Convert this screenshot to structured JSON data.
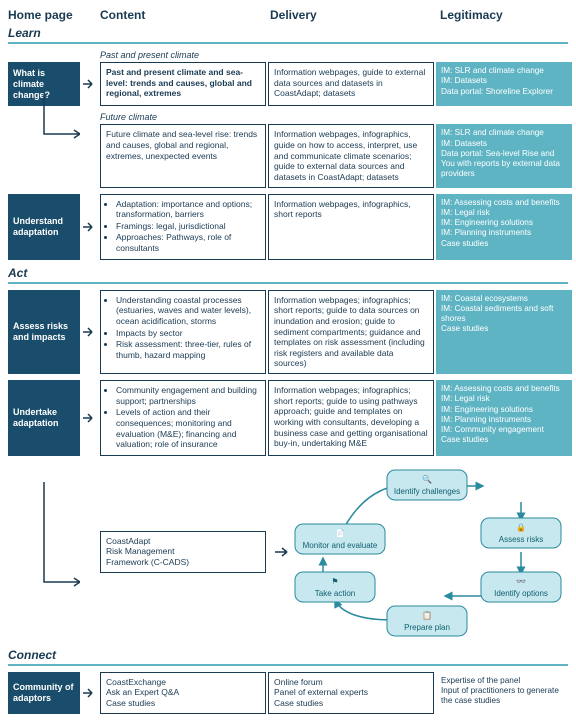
{
  "colors": {
    "dark": "#1a4d6b",
    "teal": "#5fb4c4",
    "tealLight": "#c7e8ee",
    "text": "#1a3a52"
  },
  "headers": {
    "c1": "Home page",
    "c2": "Content",
    "c3": "Delivery",
    "c4": "Legitimacy"
  },
  "learn": {
    "title": "Learn",
    "sub1": "Past and present climate",
    "sub2": "Future climate",
    "home1": "What is climate change?",
    "home2": "Understand adaptation",
    "r1c": "Past and present climate and sea-level: trends and causes, global and regional, extremes",
    "r1d": "Information webpages, guide to external data sources and datasets in CoastAdapt; datasets",
    "r1l": "IM: SLR and climate change\nIM: Datasets\nData portal: Shoreline Explorer",
    "r2c": "Future climate and sea-level rise: trends and causes, global and regional, extremes, unexpected events",
    "r2d": "Information webpages, infographics, guide on how to access, interpret, use and communicate climate scenarios; guide to external data sources and datasets in CoastAdapt; datasets",
    "r2l": "IM: SLR and climate change\nIM: Datasets\nData portal: Sea-level Rise and You with reports by external data providers",
    "r3c_b1": "Adaptation: importance and options; transformation, barriers",
    "r3c_b2": "Framings: legal, jurisdictional",
    "r3c_b3": "Approaches: Pathways, role of consultants",
    "r3d": "Information webpages, infographics, short reports",
    "r3l": "IM: Assessing costs and benefits\nIM: Legal risk\nIM: Engineering solutions\nIM: Planning instruments\nCase studies"
  },
  "act": {
    "title": "Act",
    "home1": "Assess risks and impacts",
    "home2": "Undertake adaptation",
    "r1c_b1": "Understanding coastal processes (estuaries, waves and water levels), ocean acidification, storms",
    "r1c_b2": "Impacts by sector",
    "r1c_b3": "Risk assessment: three-tier, rules of thumb, hazard mapping",
    "r1d": "Information webpages; infographics; short reports; guide to data sources on inundation and erosion; guide to sediment compartments; guidance and templates on risk assessment (including risk registers and available data sources)",
    "r1l": "IM: Coastal ecosystems\nIM: Coastal sediments and soft shores\nCase studies",
    "r2c_b1": "Community engagement and building support; partnerships",
    "r2c_b2": "Levels of action and their consequences; monitoring and evaluation (M&E); financing and valuation; role of insurance",
    "r2d": "Information webpages; infographics; short reports; guide to using pathways approach; guide and templates on working with consultants, developing a business case and getting organisational buy-in, undertaking M&E",
    "r2l": "IM: Assessing costs and benefits\nIM: Legal risk\nIM: Engineering solutions\nIM: Planning instruments\nIM: Community engagement\nCase studies",
    "r3c": "CoastAdapt\nRisk Management\nFramework (C-CADS)",
    "cycle": {
      "n1": "Identify challenges",
      "n2": "Assess risks",
      "n3": "Identify options",
      "n4": "Prepare plan",
      "n5": "Take action",
      "n6": "Monitor and evaluate"
    }
  },
  "connect": {
    "title": "Connect",
    "home1": "Community of adaptors",
    "r1c": "CoastExchange\nAsk an Expert Q&A\nCase studies",
    "r1d": "Online forum\nPanel of external experts\nCase studies",
    "r1l": "Expertise of the panel\nInput of practitioners to generate the case studies"
  }
}
